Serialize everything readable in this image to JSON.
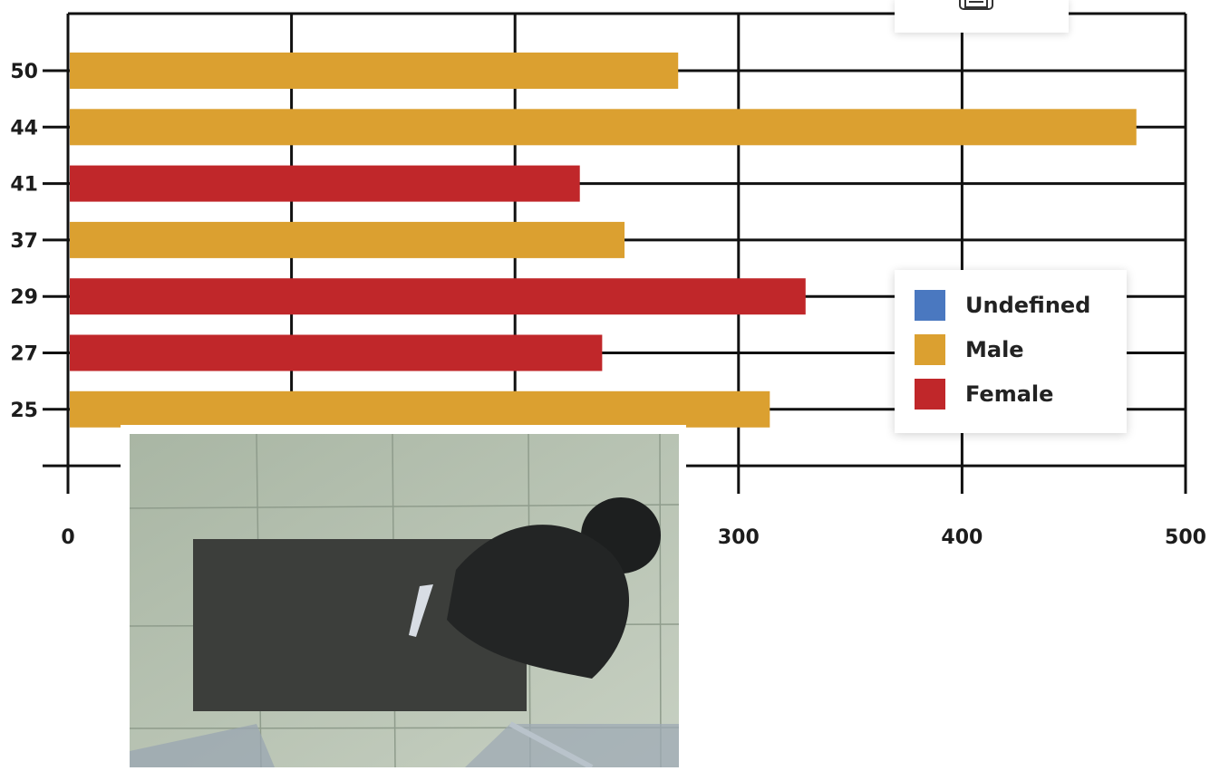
{
  "chart_data": {
    "type": "bar",
    "orientation": "horizontal",
    "categories": [
      "50",
      "44",
      "41",
      "37",
      "29",
      "27",
      "25"
    ],
    "values": [
      273,
      478,
      229,
      249,
      330,
      239,
      314
    ],
    "category_series": [
      "Male",
      "Male",
      "Female",
      "Male",
      "Female",
      "Female",
      "Male"
    ],
    "xlim": [
      0,
      500
    ],
    "x_ticks": [
      "0",
      "300",
      "400",
      "500"
    ],
    "grid": true,
    "legend_position": "right",
    "legend": [
      {
        "name": "Undefined",
        "color": "#4a78c0"
      },
      {
        "name": "Male",
        "color": "#dba030"
      },
      {
        "name": "Female",
        "color": "#c0272a"
      }
    ]
  },
  "export_icon": "print-icon",
  "photo": {
    "description_icon": "camera-snapshot"
  }
}
